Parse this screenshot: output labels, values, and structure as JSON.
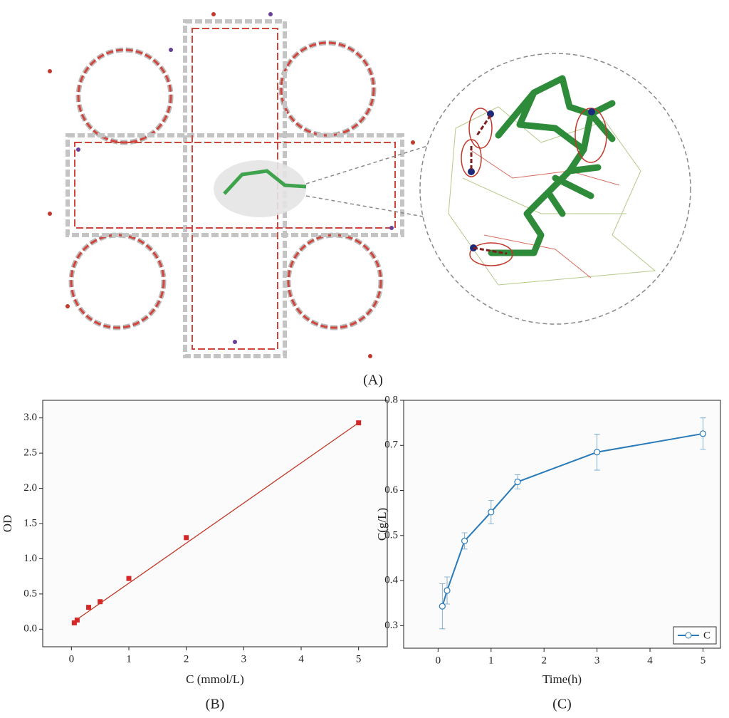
{
  "panel_a_label": "(A)",
  "chart_data": [
    {
      "type": "scatter",
      "panel_label": "(B)",
      "xlabel": "C (mmol/L)",
      "ylabel": "OD",
      "xlim": [
        -0.5,
        5.5
      ],
      "ylim": [
        -0.25,
        3.25
      ],
      "xticks": [
        0,
        1,
        2,
        3,
        4,
        5
      ],
      "yticks": [
        {
          "value": 0,
          "label": "0.0"
        },
        0.5,
        {
          "value": 1,
          "label": "1.0"
        },
        1.5,
        {
          "value": 2,
          "label": "2.0"
        },
        2.5,
        {
          "value": 3,
          "label": "3.0"
        }
      ],
      "series": [
        {
          "color": "#d62728",
          "x": [
            0.05,
            0.1,
            0.3,
            0.5,
            1,
            2,
            5
          ],
          "values": [
            0.09,
            0.13,
            0.31,
            0.39,
            0.72,
            1.3,
            2.93
          ]
        }
      ],
      "fit": {
        "color": "#c0392b",
        "x": [
          0.1,
          5
        ],
        "y": [
          0.14,
          2.93
        ]
      }
    },
    {
      "type": "line",
      "panel_label": "(C)",
      "xlabel": "Time(h)",
      "ylabel": "C(g/L)",
      "xlim": [
        -0.65,
        5.33
      ],
      "ylim": [
        0.25,
        0.8
      ],
      "xticks": [
        0,
        1,
        2,
        3,
        4,
        5
      ],
      "yticks": [
        0.3,
        0.4,
        0.5,
        0.6,
        0.7,
        0.8
      ],
      "legend": "lower right",
      "series": [
        {
          "name": "C",
          "color": "#2a7ab8",
          "x": [
            0.08,
            0.17,
            0.5,
            1,
            1.5,
            3,
            5
          ],
          "values": [
            0.343,
            0.378,
            0.488,
            0.552,
            0.619,
            0.685,
            0.726
          ],
          "errors": [
            0.05,
            0.03,
            0.018,
            0.026,
            0.016,
            0.04,
            0.035
          ]
        }
      ]
    }
  ]
}
